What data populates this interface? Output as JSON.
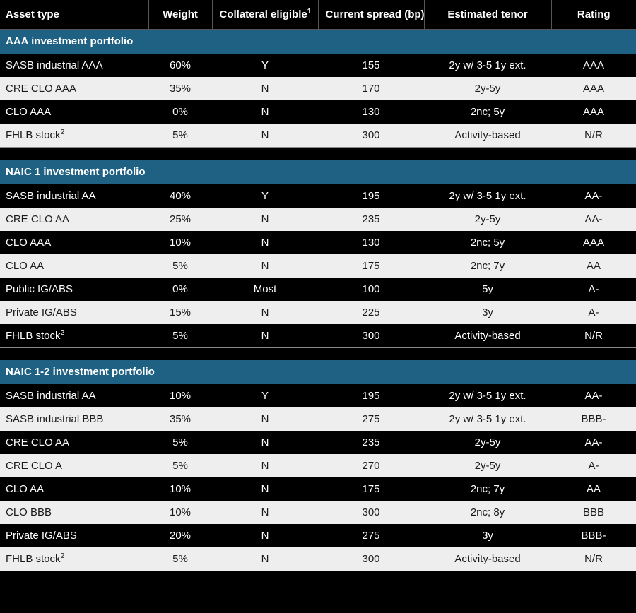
{
  "colors": {
    "header_bg": "#000000",
    "header_text": "#ffffff",
    "section_bg": "#1e6183",
    "section_text": "#ffffff",
    "row_dark_bg": "#000000",
    "row_dark_text": "#ffffff",
    "row_light_bg": "#eeeeee",
    "row_light_text": "#1a1a1a",
    "border": "#555555"
  },
  "columns": [
    {
      "label": "Asset type",
      "sup": ""
    },
    {
      "label": "Weight",
      "sup": ""
    },
    {
      "label": "Collateral eligible",
      "sup": "1"
    },
    {
      "label": "Current spread (bp)",
      "sup": ""
    },
    {
      "label": "Estimated tenor",
      "sup": ""
    },
    {
      "label": "Rating",
      "sup": ""
    }
  ],
  "sections": [
    {
      "title": "AAA investment portfolio",
      "rows": [
        {
          "asset": "SASB industrial AAA",
          "asset_sup": "",
          "weight": "60%",
          "coll": "Y",
          "spread": "155",
          "tenor": "2y w/ 3-5 1y ext.",
          "rating": "AAA",
          "shade": "dark"
        },
        {
          "asset": "CRE CLO AAA",
          "asset_sup": "",
          "weight": "35%",
          "coll": "N",
          "spread": "170",
          "tenor": "2y-5y",
          "rating": "AAA",
          "shade": "light"
        },
        {
          "asset": "CLO AAA",
          "asset_sup": "",
          "weight": "0%",
          "coll": "N",
          "spread": "130",
          "tenor": "2nc; 5y",
          "rating": "AAA",
          "shade": "dark"
        },
        {
          "asset": "FHLB stock",
          "asset_sup": "2",
          "weight": "5%",
          "coll": "N",
          "spread": "300",
          "tenor": "Activity-based",
          "rating": "N/R",
          "shade": "light"
        }
      ]
    },
    {
      "title": "NAIC 1 investment portfolio",
      "rows": [
        {
          "asset": "SASB industrial AA",
          "asset_sup": "",
          "weight": "40%",
          "coll": "Y",
          "spread": "195",
          "tenor": "2y w/ 3-5 1y ext.",
          "rating": "AA-",
          "shade": "dark"
        },
        {
          "asset": "CRE CLO AA",
          "asset_sup": "",
          "weight": "25%",
          "coll": "N",
          "spread": "235",
          "tenor": "2y-5y",
          "rating": "AA-",
          "shade": "light"
        },
        {
          "asset": "CLO AAA",
          "asset_sup": "",
          "weight": "10%",
          "coll": "N",
          "spread": "130",
          "tenor": "2nc; 5y",
          "rating": "AAA",
          "shade": "dark"
        },
        {
          "asset": "CLO AA",
          "asset_sup": "",
          "weight": "5%",
          "coll": "N",
          "spread": "175",
          "tenor": "2nc; 7y",
          "rating": "AA",
          "shade": "light"
        },
        {
          "asset": "Public IG/ABS",
          "asset_sup": "",
          "weight": "0%",
          "coll": "Most",
          "spread": "100",
          "tenor": "5y",
          "rating": "A-",
          "shade": "dark"
        },
        {
          "asset": "Private IG/ABS",
          "asset_sup": "",
          "weight": "15%",
          "coll": "N",
          "spread": "225",
          "tenor": "3y",
          "rating": "A-",
          "shade": "light"
        },
        {
          "asset": "FHLB stock",
          "asset_sup": "2",
          "weight": "5%",
          "coll": "N",
          "spread": "300",
          "tenor": "Activity-based",
          "rating": "N/R",
          "shade": "dark"
        }
      ]
    },
    {
      "title": "NAIC 1-2 investment portfolio",
      "rows": [
        {
          "asset": "SASB industrial AA",
          "asset_sup": "",
          "weight": "10%",
          "coll": "Y",
          "spread": "195",
          "tenor": "2y w/ 3-5 1y ext.",
          "rating": "AA-",
          "shade": "dark"
        },
        {
          "asset": "SASB industrial BBB",
          "asset_sup": "",
          "weight": "35%",
          "coll": "N",
          "spread": "275",
          "tenor": "2y w/ 3-5 1y ext.",
          "rating": "BBB-",
          "shade": "light"
        },
        {
          "asset": "CRE CLO AA",
          "asset_sup": "",
          "weight": "5%",
          "coll": "N",
          "spread": "235",
          "tenor": "2y-5y",
          "rating": "AA-",
          "shade": "dark"
        },
        {
          "asset": "CRE CLO A",
          "asset_sup": "",
          "weight": "5%",
          "coll": "N",
          "spread": "270",
          "tenor": "2y-5y",
          "rating": "A-",
          "shade": "light"
        },
        {
          "asset": "CLO AA",
          "asset_sup": "",
          "weight": "10%",
          "coll": "N",
          "spread": "175",
          "tenor": "2nc; 7y",
          "rating": "AA",
          "shade": "dark"
        },
        {
          "asset": "CLO BBB",
          "asset_sup": "",
          "weight": "10%",
          "coll": "N",
          "spread": "300",
          "tenor": "2nc; 8y",
          "rating": "BBB",
          "shade": "light"
        },
        {
          "asset": "Private IG/ABS",
          "asset_sup": "",
          "weight": "20%",
          "coll": "N",
          "spread": "275",
          "tenor": "3y",
          "rating": "BBB-",
          "shade": "dark"
        },
        {
          "asset": "FHLB stock",
          "asset_sup": "2",
          "weight": "5%",
          "coll": "N",
          "spread": "300",
          "tenor": "Activity-based",
          "rating": "N/R",
          "shade": "light"
        }
      ]
    }
  ]
}
